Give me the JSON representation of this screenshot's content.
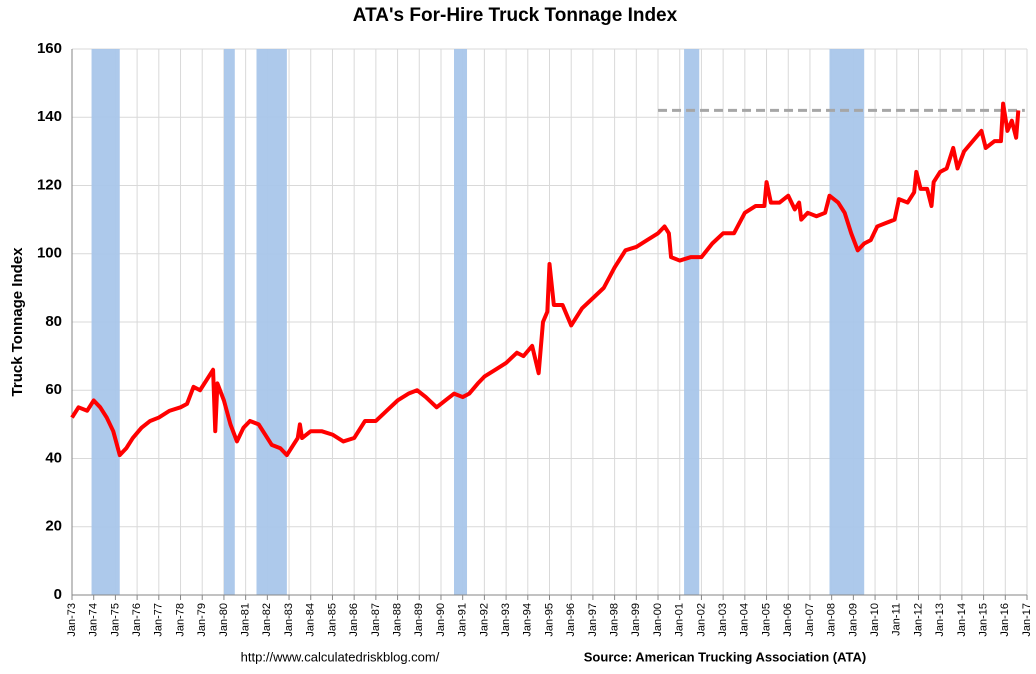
{
  "chart_data": {
    "type": "line",
    "title": "ATA's For-Hire Truck Tonnage Index",
    "y_label": "Truck Tonnage Index",
    "footer_left": "http://www.calculatedriskblog.com/",
    "footer_right": "Source: American Trucking Association (ATA)",
    "xlim": [
      1973,
      2017
    ],
    "xticks": [
      {
        "value": 1973,
        "label": "Jan-73"
      },
      {
        "value": 1974,
        "label": "Jan-74"
      },
      {
        "value": 1975,
        "label": "Jan-75"
      },
      {
        "value": 1976,
        "label": "Jan-76"
      },
      {
        "value": 1977,
        "label": "Jan-77"
      },
      {
        "value": 1978,
        "label": "Jan-78"
      },
      {
        "value": 1979,
        "label": "Jan-79"
      },
      {
        "value": 1980,
        "label": "Jan-80"
      },
      {
        "value": 1981,
        "label": "Jan-81"
      },
      {
        "value": 1982,
        "label": "Jan-82"
      },
      {
        "value": 1983,
        "label": "Jan-83"
      },
      {
        "value": 1984,
        "label": "Jan-84"
      },
      {
        "value": 1985,
        "label": "Jan-85"
      },
      {
        "value": 1986,
        "label": "Jan-86"
      },
      {
        "value": 1987,
        "label": "Jan-87"
      },
      {
        "value": 1988,
        "label": "Jan-88"
      },
      {
        "value": 1989,
        "label": "Jan-89"
      },
      {
        "value": 1990,
        "label": "Jan-90"
      },
      {
        "value": 1991,
        "label": "Jan-91"
      },
      {
        "value": 1992,
        "label": "Jan-92"
      },
      {
        "value": 1993,
        "label": "Jan-93"
      },
      {
        "value": 1994,
        "label": "Jan-94"
      },
      {
        "value": 1995,
        "label": "Jan-95"
      },
      {
        "value": 1996,
        "label": "Jan-96"
      },
      {
        "value": 1997,
        "label": "Jan-97"
      },
      {
        "value": 1998,
        "label": "Jan-98"
      },
      {
        "value": 1999,
        "label": "Jan-99"
      },
      {
        "value": 2000,
        "label": "Jan-00"
      },
      {
        "value": 2001,
        "label": "Jan-01"
      },
      {
        "value": 2002,
        "label": "Jan-02"
      },
      {
        "value": 2003,
        "label": "Jan-03"
      },
      {
        "value": 2004,
        "label": "Jan-04"
      },
      {
        "value": 2005,
        "label": "Jan-05"
      },
      {
        "value": 2006,
        "label": "Jan-06"
      },
      {
        "value": 2007,
        "label": "Jan-07"
      },
      {
        "value": 2008,
        "label": "Jan-08"
      },
      {
        "value": 2009,
        "label": "Jan-09"
      },
      {
        "value": 2010,
        "label": "Jan-10"
      },
      {
        "value": 2011,
        "label": "Jan-11"
      },
      {
        "value": 2012,
        "label": "Jan-12"
      },
      {
        "value": 2013,
        "label": "Jan-13"
      },
      {
        "value": 2014,
        "label": "Jan-14"
      },
      {
        "value": 2015,
        "label": "Jan-15"
      },
      {
        "value": 2016,
        "label": "Jan-16"
      },
      {
        "value": 2017,
        "label": "Jan-17"
      }
    ],
    "ylim": [
      0,
      160
    ],
    "yticks": [
      0,
      20,
      40,
      60,
      80,
      100,
      120,
      140,
      160
    ],
    "grid": true,
    "recession_color": "#a9c6ea",
    "recessions": [
      [
        1973.9,
        1975.2
      ],
      [
        1980.0,
        1980.5
      ],
      [
        1981.5,
        1982.9
      ],
      [
        1990.6,
        1991.2
      ],
      [
        2001.2,
        2001.9
      ],
      [
        2007.9,
        2009.5
      ]
    ],
    "reference_line": {
      "y": 142,
      "x": [
        2000,
        2016.9
      ],
      "color": "#a6a6a6"
    },
    "x": [
      1973.0,
      1973.3,
      1973.7,
      1974.0,
      1974.3,
      1974.6,
      1974.9,
      1975.2,
      1975.5,
      1975.8,
      1976.2,
      1976.6,
      1977.0,
      1977.5,
      1978.0,
      1978.3,
      1978.6,
      1978.9,
      1979.2,
      1979.5,
      1979.6,
      1979.7,
      1980.0,
      1980.3,
      1980.6,
      1980.9,
      1981.2,
      1981.6,
      1981.9,
      1982.2,
      1982.6,
      1982.9,
      1983.2,
      1983.4,
      1983.5,
      1983.6,
      1984.0,
      1984.5,
      1985.0,
      1985.5,
      1986.0,
      1986.5,
      1987.0,
      1987.5,
      1988.0,
      1988.5,
      1988.9,
      1989.3,
      1989.8,
      1990.2,
      1990.6,
      1991.0,
      1991.3,
      1991.7,
      1992.0,
      1992.5,
      1993.0,
      1993.5,
      1993.8,
      1994.2,
      1994.5,
      1994.7,
      1994.9,
      1995.0,
      1995.2,
      1995.6,
      1995.8,
      1996.0,
      1996.5,
      1997.0,
      1997.5,
      1998.0,
      1998.5,
      1999.0,
      1999.5,
      2000.0,
      2000.3,
      2000.5,
      2000.6,
      2001.0,
      2001.5,
      2002.0,
      2002.5,
      2003.0,
      2003.5,
      2004.0,
      2004.5,
      2004.9,
      2005.0,
      2005.2,
      2005.6,
      2006.0,
      2006.3,
      2006.5,
      2006.6,
      2006.9,
      2007.3,
      2007.7,
      2007.9,
      2008.3,
      2008.6,
      2008.9,
      2009.2,
      2009.5,
      2009.8,
      2010.1,
      2010.5,
      2010.9,
      2011.1,
      2011.5,
      2011.8,
      2011.9,
      2012.1,
      2012.4,
      2012.6,
      2012.7,
      2013.0,
      2013.3,
      2013.6,
      2013.8,
      2014.1,
      2014.5,
      2014.9,
      2015.1,
      2015.5,
      2015.8,
      2015.9,
      2016.1,
      2016.3,
      2016.5,
      2016.6
    ],
    "series": [
      {
        "name": "Truck Tonnage Index",
        "color": "#ff0000",
        "values": [
          52,
          55,
          54,
          57,
          55,
          52,
          48,
          41,
          43,
          46,
          49,
          51,
          52,
          54,
          55,
          56,
          61,
          60,
          63,
          66,
          48,
          62,
          57,
          50,
          45,
          49,
          51,
          50,
          47,
          44,
          43,
          41,
          44,
          46,
          50,
          46,
          48,
          48,
          47,
          45,
          46,
          51,
          51,
          54,
          57,
          59,
          60,
          58,
          55,
          57,
          59,
          58,
          59,
          62,
          64,
          66,
          68,
          71,
          70,
          73,
          65,
          80,
          83,
          97,
          85,
          85,
          82,
          79,
          84,
          87,
          90,
          96,
          101,
          102,
          104,
          106,
          108,
          106,
          99,
          98,
          99,
          99,
          103,
          106,
          106,
          112,
          114,
          114,
          121,
          115,
          115,
          117,
          113,
          115,
          110,
          112,
          111,
          112,
          117,
          115,
          112,
          106,
          101,
          103,
          104,
          108,
          109,
          110,
          116,
          115,
          118,
          124,
          119,
          119,
          114,
          121,
          124,
          125,
          131,
          125,
          130,
          133,
          136,
          131,
          133,
          133,
          144,
          136,
          139,
          134,
          142
        ]
      }
    ]
  }
}
